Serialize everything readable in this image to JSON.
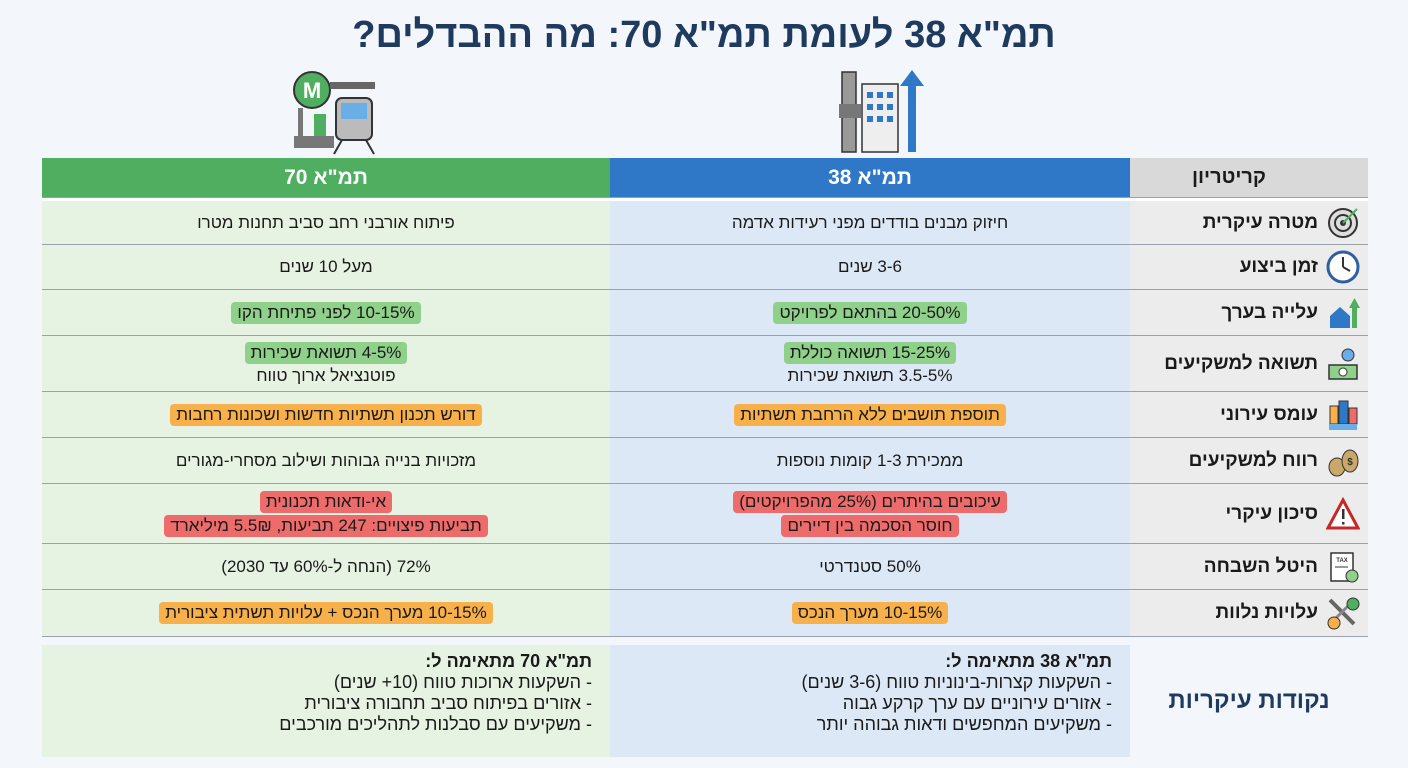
{
  "title": "תמ\"א 38 לעומת תמ\"א 70: מה ההבדלים?",
  "colors": {
    "tama38": "#2f78c8",
    "tama70": "#4fae5f",
    "title": "#1f3a5f",
    "highlight_green": "#8fd08a",
    "highlight_orange": "#f8b04a",
    "highlight_red": "#ee6b6b"
  },
  "header_icons": {
    "tama38": "building-arrow-up-icon",
    "tama70": "metro-station-icon",
    "metro_letter": "M"
  },
  "header": {
    "criterion": "קריטריון",
    "tama38": "תמ\"א 38",
    "tama70": "תמ\"א 70"
  },
  "rows": [
    {
      "label": "מטרה עיקרית",
      "icon": "target-icon",
      "t38": [
        {
          "text": "חיזוק מבנים בודדים מפני רעידות אדמה",
          "hl": ""
        }
      ],
      "t70": [
        {
          "text": "פיתוח אורבני רחב סביב תחנות מטרו",
          "hl": ""
        }
      ]
    },
    {
      "label": "זמן ביצוע",
      "icon": "clock-icon",
      "t38": [
        {
          "text": "3-6 שנים",
          "hl": ""
        }
      ],
      "t70": [
        {
          "text": "מעל 10 שנים",
          "hl": ""
        }
      ]
    },
    {
      "label": "עלייה בערך",
      "icon": "house-arrow-up-icon",
      "t38": [
        {
          "text": "20-50% בהתאם לפרויקט",
          "hl": "green"
        }
      ],
      "t70": [
        {
          "text": "10-15% לפני פתיחת הקו",
          "hl": "green"
        }
      ]
    },
    {
      "label": "תשואה למשקיעים",
      "icon": "money-percent-icon",
      "t38": [
        {
          "text": "15-25% תשואה כוללת",
          "hl": "green"
        },
        {
          "text": "3.5-5% תשואת שכירות",
          "hl": ""
        }
      ],
      "t70": [
        {
          "text": "4-5% תשואת שכירות",
          "hl": "green"
        },
        {
          "text": "פוטנציאל ארוך טווח",
          "hl": ""
        }
      ]
    },
    {
      "label": "עומס עירוני",
      "icon": "city-crowd-icon",
      "t38": [
        {
          "text": "תוספת תושבים ללא הרחבת תשתיות",
          "hl": "orange"
        }
      ],
      "t70": [
        {
          "text": "דורש תכנון תשתיות חדשות ושכונות רחבות",
          "hl": "orange"
        }
      ]
    },
    {
      "label": "רווח למשקיעים",
      "icon": "money-bags-icon",
      "t38": [
        {
          "text": "ממכירת 1-3 קומות נוספות",
          "hl": ""
        }
      ],
      "t70": [
        {
          "text": "מזכויות בנייה גבוהות ושילוב מסחרי-מגורים",
          "hl": ""
        }
      ]
    },
    {
      "label": "סיכון עיקרי",
      "icon": "warning-icon",
      "t38": [
        {
          "text": "עיכובים בהיתרים (25% מהפרויקטים)",
          "hl": "red"
        },
        {
          "text": "חוסר הסכמה בין דיירים",
          "hl": "red"
        }
      ],
      "t70": [
        {
          "text": "אי-ודאות תכנונית",
          "hl": "red"
        },
        {
          "text": "תביעות פיצויים: 247 תביעות, 5.5₪ מיליארד",
          "hl": "red"
        }
      ]
    },
    {
      "label": "היטל השבחה",
      "icon": "tax-document-icon",
      "t38": [
        {
          "text": "50% סטנדרטי",
          "hl": ""
        }
      ],
      "t70": [
        {
          "text": "72% (הנחה ל-60% עד 2030)",
          "hl": ""
        }
      ]
    },
    {
      "label": "עלויות נלוות",
      "icon": "wrench-coins-icon",
      "t38": [
        {
          "text": "10-15% מערך הנכס",
          "hl": "orange"
        }
      ],
      "t70": [
        {
          "text": "10-15% מערך הנכס + עלויות תשתית ציבורית",
          "hl": "orange"
        }
      ]
    }
  ],
  "summary": {
    "label": "נקודות עיקריות",
    "t38": {
      "heading": "תמ\"א 38 מתאימה ל:",
      "items": [
        "- השקעות קצרות-בינוניות טווח (3-6 שנים)",
        "- אזורים עירוניים עם ערך קרקע גבוה",
        "- משקיעים המחפשים ודאות גבוהה יותר"
      ]
    },
    "t70": {
      "heading": "תמ\"א 70 מתאימה ל:",
      "items": [
        "- השקעות ארוכות טווח (10+ שנים)",
        "- אזורים בפיתוח סביב תחבורה ציבורית",
        "- משקיעים עם סבלנות לתהליכים מורכבים"
      ]
    }
  }
}
